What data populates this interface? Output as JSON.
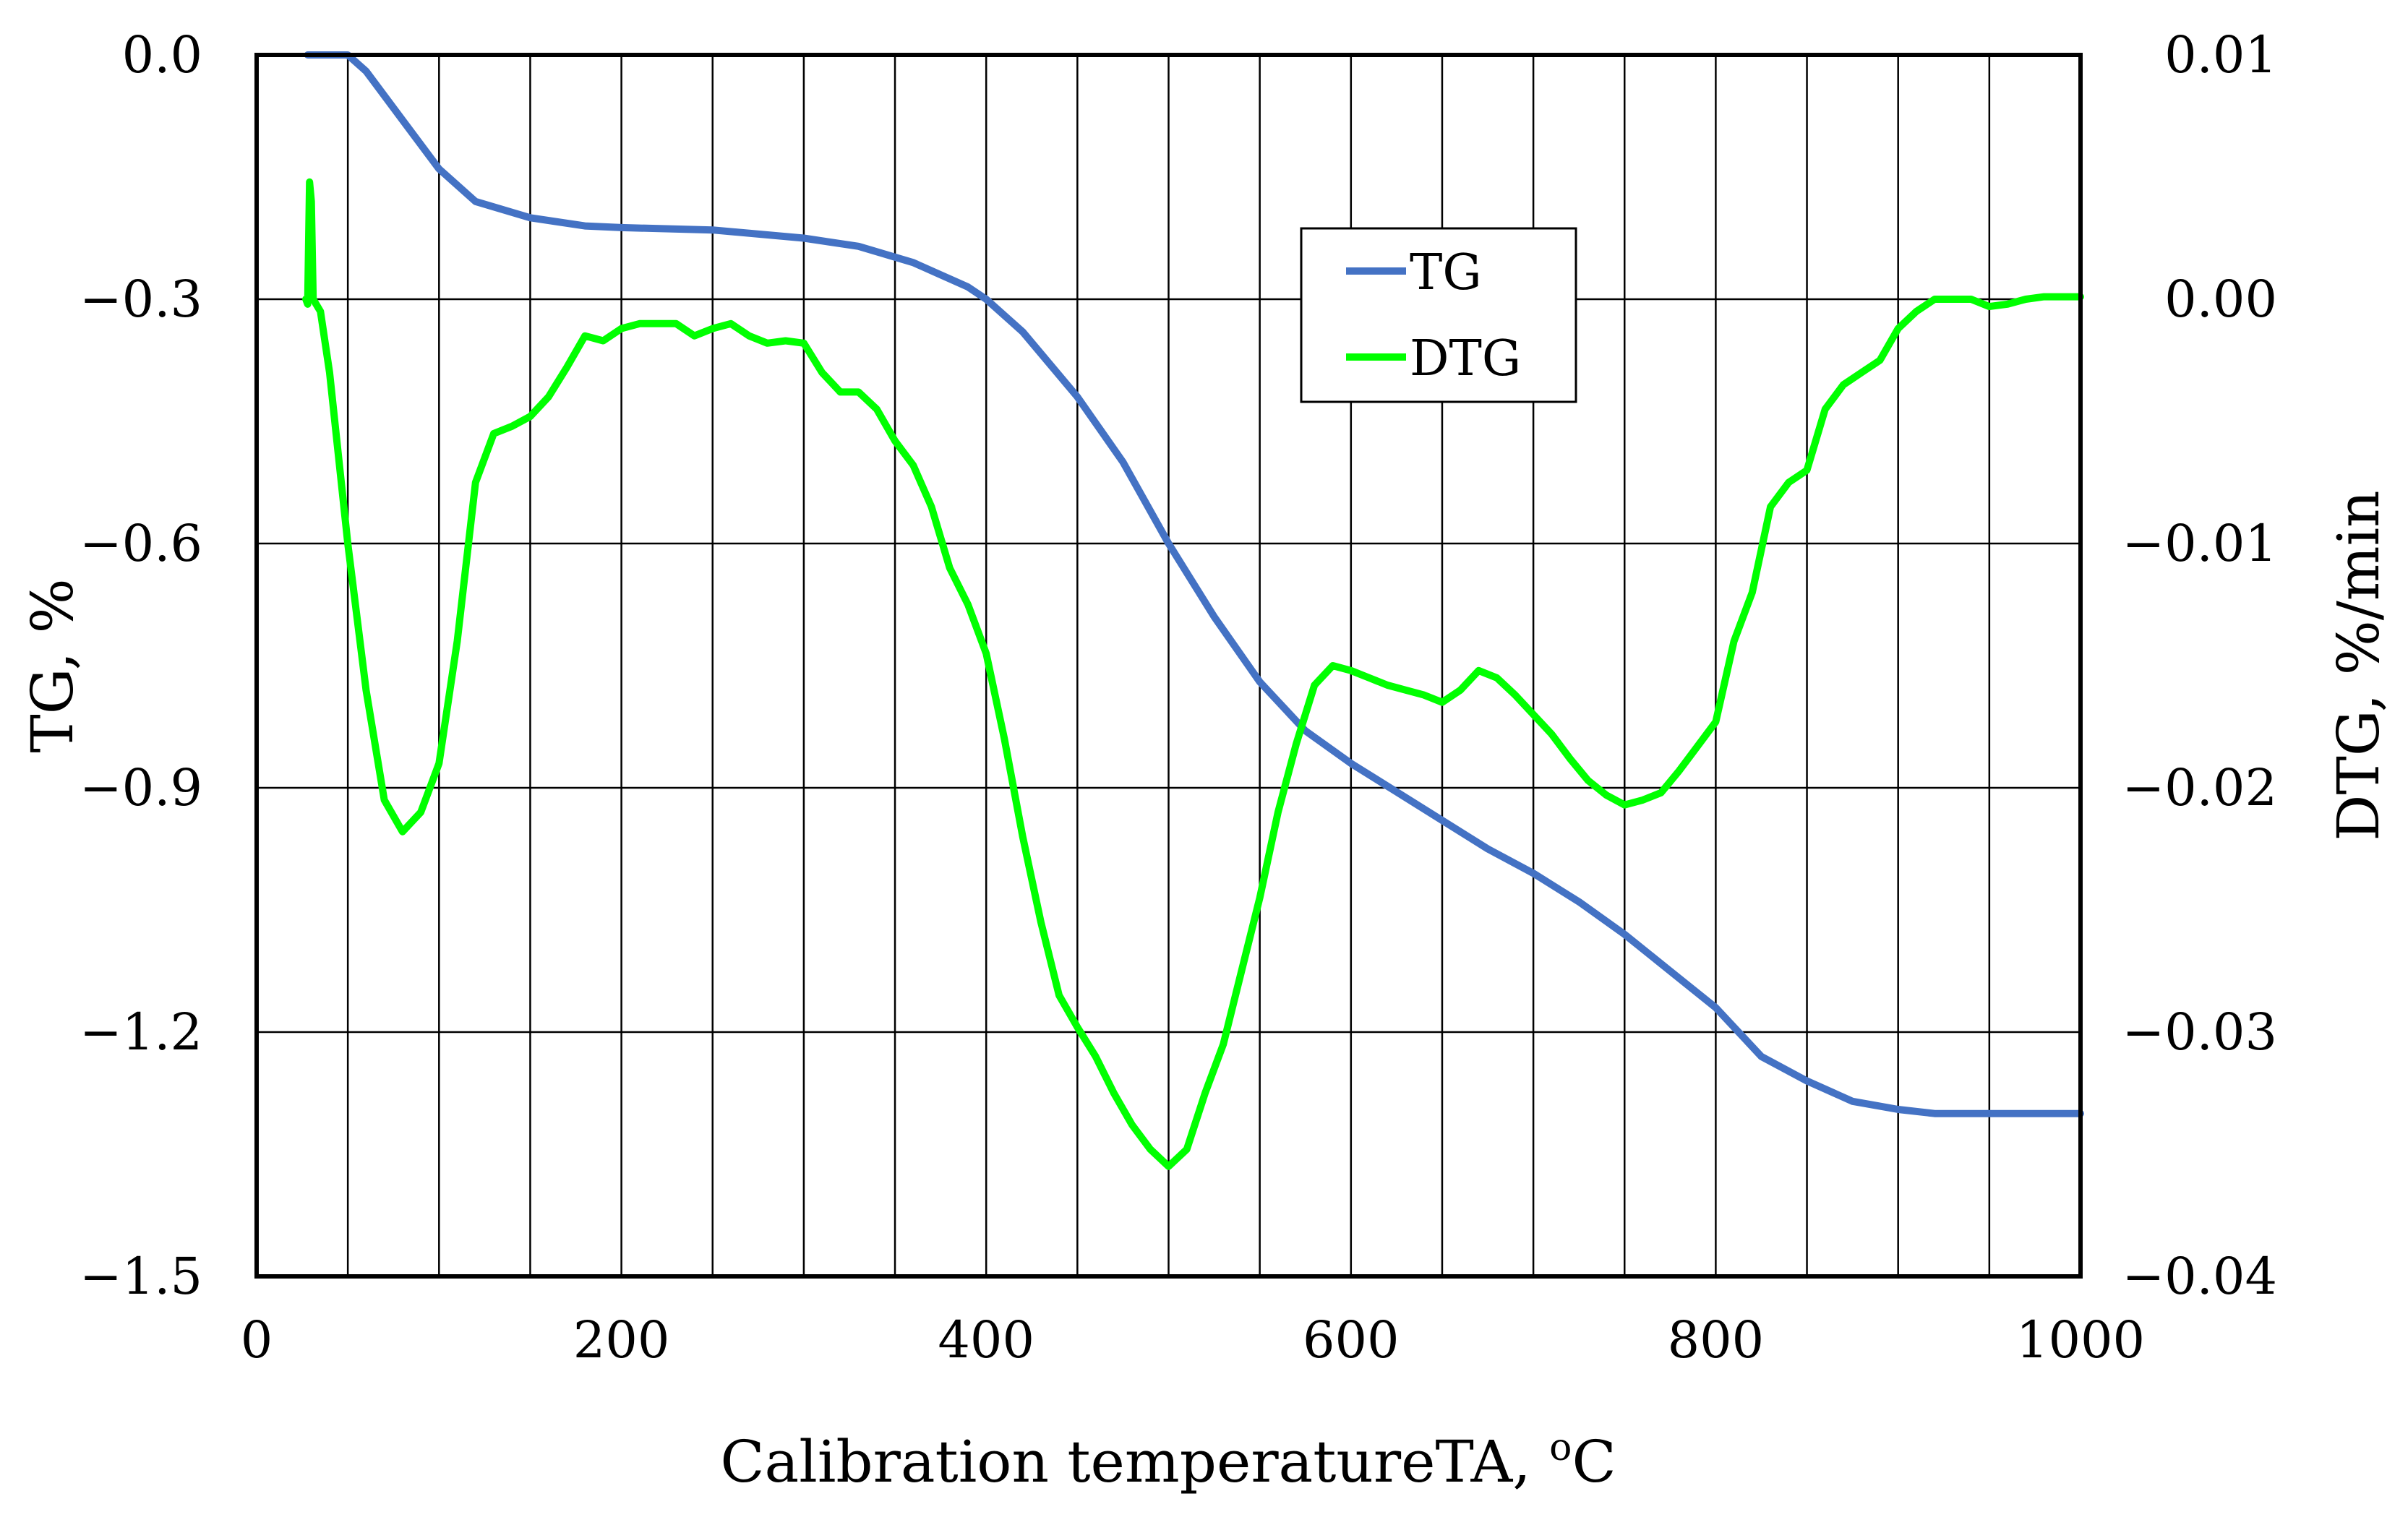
{
  "chart_data": {
    "type": "line",
    "xlabel": "Calibration temperatureTA, ",
    "xlabel_sup": "o",
    "xlabel_unit": "C",
    "ylabel_left": "TG, %",
    "ylabel_right": "DTG, %/min",
    "xlim": [
      0,
      1000
    ],
    "ylim_left": [
      -1.5,
      0.0
    ],
    "ylim_right": [
      -0.04,
      0.01
    ],
    "x_ticks": [
      0,
      200,
      400,
      600,
      800,
      1000
    ],
    "x_tick_labels": [
      "0",
      "200",
      "400",
      "600",
      "800",
      "1000"
    ],
    "y_left_ticks": [
      0.0,
      -0.3,
      -0.6,
      -0.9,
      -1.2,
      -1.5
    ],
    "y_left_tick_labels": [
      "0.0",
      "−0.3",
      "−0.6",
      "−0.9",
      "−1.2",
      "−1.5"
    ],
    "y_right_ticks": [
      0.01,
      0.0,
      -0.01,
      -0.02,
      -0.03,
      -0.04
    ],
    "y_right_tick_labels": [
      "0.01",
      "0.00",
      "−0.01",
      "−0.02",
      "−0.03",
      "−0.04"
    ],
    "x_gridlines": [
      0,
      50,
      100,
      150,
      200,
      250,
      300,
      350,
      400,
      450,
      500,
      550,
      600,
      650,
      700,
      750,
      800,
      850,
      900,
      950,
      1000
    ],
    "grid": true,
    "legend_position": "top-center-right",
    "series": [
      {
        "name": "TG",
        "axis": "left",
        "color": "#4472C4",
        "x": [
          28,
          50,
          60,
          80,
          100,
          120,
          150,
          180,
          200,
          250,
          300,
          330,
          360,
          390,
          400,
          420,
          450,
          475,
          500,
          525,
          550,
          575,
          600,
          625,
          650,
          675,
          700,
          725,
          750,
          775,
          800,
          825,
          850,
          875,
          900,
          920,
          950,
          1000
        ],
        "y": [
          0.0,
          0.0,
          -0.02,
          -0.08,
          -0.14,
          -0.18,
          -0.2,
          -0.21,
          -0.212,
          -0.215,
          -0.225,
          -0.235,
          -0.255,
          -0.285,
          -0.3,
          -0.34,
          -0.42,
          -0.5,
          -0.6,
          -0.69,
          -0.77,
          -0.83,
          -0.87,
          -0.905,
          -0.94,
          -0.975,
          -1.005,
          -1.04,
          -1.08,
          -1.125,
          -1.17,
          -1.23,
          -1.26,
          -1.285,
          -1.295,
          -1.3,
          -1.3,
          -1.3
        ]
      },
      {
        "name": "DTG",
        "axis": "right",
        "color": "#00FF00",
        "x": [
          27,
          28,
          29,
          30,
          31,
          35,
          40,
          50,
          60,
          70,
          80,
          90,
          100,
          110,
          120,
          130,
          140,
          150,
          160,
          170,
          180,
          190,
          200,
          210,
          220,
          230,
          240,
          250,
          260,
          270,
          280,
          290,
          300,
          310,
          320,
          330,
          340,
          350,
          360,
          370,
          380,
          390,
          400,
          410,
          420,
          430,
          440,
          450,
          460,
          470,
          480,
          490,
          500,
          510,
          520,
          530,
          540,
          550,
          560,
          570,
          580,
          590,
          600,
          610,
          620,
          630,
          640,
          650,
          660,
          670,
          680,
          690,
          700,
          710,
          720,
          730,
          740,
          750,
          760,
          770,
          780,
          790,
          800,
          810,
          820,
          830,
          840,
          850,
          860,
          870,
          880,
          890,
          900,
          910,
          920,
          930,
          940,
          950,
          960,
          970,
          980,
          990,
          1000
        ],
        "y": [
          0.0,
          -0.0002,
          0.0048,
          0.004,
          0.0,
          -0.0005,
          -0.003,
          -0.01,
          -0.016,
          -0.0205,
          -0.0218,
          -0.021,
          -0.019,
          -0.014,
          -0.0075,
          -0.0055,
          -0.0052,
          -0.0048,
          -0.004,
          -0.0028,
          -0.0015,
          -0.0017,
          -0.0012,
          -0.001,
          -0.001,
          -0.001,
          -0.0015,
          -0.0012,
          -0.001,
          -0.0015,
          -0.0018,
          -0.0017,
          -0.0018,
          -0.003,
          -0.0038,
          -0.0038,
          -0.0045,
          -0.0058,
          -0.0068,
          -0.0085,
          -0.011,
          -0.0125,
          -0.0145,
          -0.018,
          -0.022,
          -0.0255,
          -0.0285,
          -0.0298,
          -0.031,
          -0.0325,
          -0.0338,
          -0.0348,
          -0.0355,
          -0.0348,
          -0.0325,
          -0.0305,
          -0.0275,
          -0.0245,
          -0.021,
          -0.0182,
          -0.0158,
          -0.015,
          -0.0152,
          -0.0155,
          -0.0158,
          -0.016,
          -0.0162,
          -0.0165,
          -0.016,
          -0.0152,
          -0.0155,
          -0.0162,
          -0.017,
          -0.0178,
          -0.0188,
          -0.0197,
          -0.0203,
          -0.0207,
          -0.0205,
          -0.0202,
          -0.0193,
          -0.0183,
          -0.0173,
          -0.014,
          -0.012,
          -0.0085,
          -0.0075,
          -0.007,
          -0.0045,
          -0.0035,
          -0.003,
          -0.0025,
          -0.0012,
          -0.0005,
          0.0,
          0.0,
          0.0,
          -0.0003,
          -0.0002,
          0.0,
          0.0001,
          0.0001,
          0.0001
        ]
      }
    ]
  }
}
